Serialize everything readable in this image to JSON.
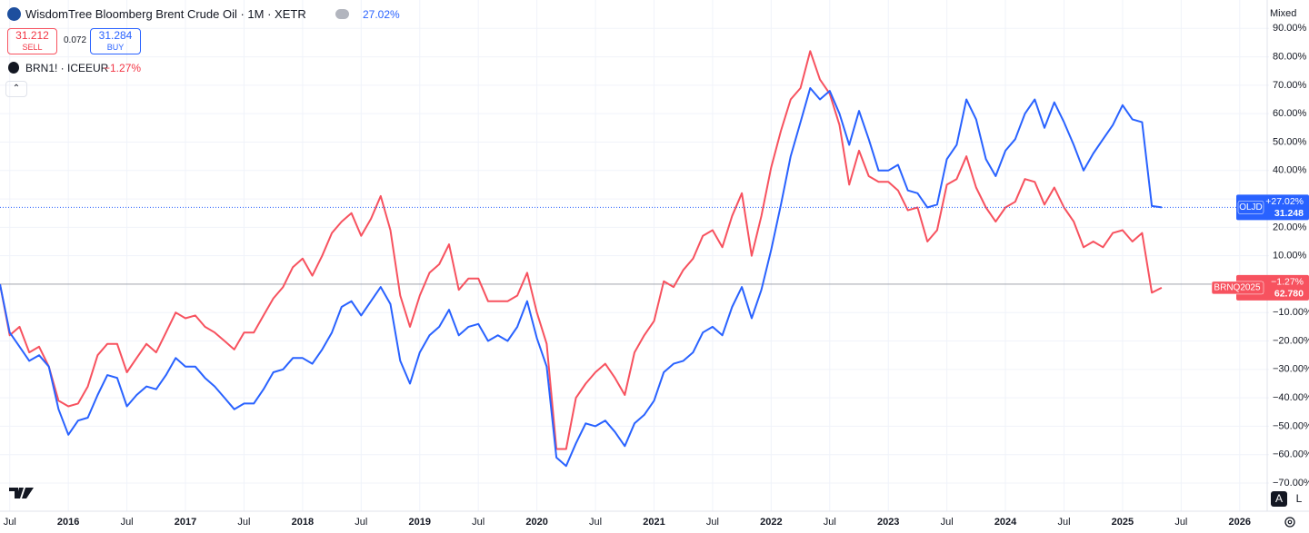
{
  "chart_data": {
    "type": "line",
    "title": "WisdomTree Bloomberg Brent Crude Oil · 1M · XETR",
    "sell": {
      "price": "31.212",
      "label": "SELL"
    },
    "spread": "0.072",
    "buy": {
      "price": "31.284",
      "label": "BUY"
    },
    "scale_mode": "Mixed",
    "scale_buttons": [
      "A",
      "L"
    ],
    "grid": true,
    "x": [
      "2015-06",
      "2015-07",
      "2015-08",
      "2015-09",
      "2015-10",
      "2015-11",
      "2015-12",
      "2016-01",
      "2016-02",
      "2016-03",
      "2016-04",
      "2016-05",
      "2016-06",
      "2016-07",
      "2016-08",
      "2016-09",
      "2016-10",
      "2016-11",
      "2016-12",
      "2017-01",
      "2017-02",
      "2017-03",
      "2017-04",
      "2017-05",
      "2017-06",
      "2017-07",
      "2017-08",
      "2017-09",
      "2017-10",
      "2017-11",
      "2017-12",
      "2018-01",
      "2018-02",
      "2018-03",
      "2018-04",
      "2018-05",
      "2018-06",
      "2018-07",
      "2018-08",
      "2018-09",
      "2018-10",
      "2018-11",
      "2018-12",
      "2019-01",
      "2019-02",
      "2019-03",
      "2019-04",
      "2019-05",
      "2019-06",
      "2019-07",
      "2019-08",
      "2019-09",
      "2019-10",
      "2019-11",
      "2019-12",
      "2020-01",
      "2020-02",
      "2020-03",
      "2020-04",
      "2020-05",
      "2020-06",
      "2020-07",
      "2020-08",
      "2020-09",
      "2020-10",
      "2020-11",
      "2020-12",
      "2021-01",
      "2021-02",
      "2021-03",
      "2021-04",
      "2021-05",
      "2021-06",
      "2021-07",
      "2021-08",
      "2021-09",
      "2021-10",
      "2021-11",
      "2021-12",
      "2022-01",
      "2022-02",
      "2022-03",
      "2022-04",
      "2022-05",
      "2022-06",
      "2022-07",
      "2022-08",
      "2022-09",
      "2022-10",
      "2022-11",
      "2022-12",
      "2023-01",
      "2023-02",
      "2023-03",
      "2023-04",
      "2023-05",
      "2023-06",
      "2023-07",
      "2023-08",
      "2023-09",
      "2023-10",
      "2023-11",
      "2023-12",
      "2024-01",
      "2024-02",
      "2024-03",
      "2024-04",
      "2024-05",
      "2024-06",
      "2024-07",
      "2024-08",
      "2024-09",
      "2024-10",
      "2024-11",
      "2024-12",
      "2025-01",
      "2025-02",
      "2025-03",
      "2025-04",
      "2025-05"
    ],
    "series": [
      {
        "name": "OLJD",
        "color": "#2962ff",
        "change_label": "27.02%",
        "tag_change": "+27.02%",
        "tag_price": "31.248",
        "values": [
          0,
          -17,
          -22,
          -27,
          -25,
          -29,
          -44,
          -53,
          -48,
          -47,
          -39,
          -32,
          -33,
          -43,
          -39,
          -36,
          -37,
          -32,
          -26,
          -29,
          -29,
          -33,
          -36,
          -40,
          -44,
          -42,
          -42,
          -37,
          -31,
          -30,
          -26,
          -26,
          -28,
          -23,
          -17,
          -8,
          -6,
          -11,
          -6,
          -1,
          -7,
          -27,
          -35,
          -24,
          -18,
          -15,
          -9,
          -18,
          -15,
          -14,
          -20,
          -18,
          -20,
          -15,
          -6,
          -19,
          -29,
          -61,
          -64,
          -56,
          -49,
          -50,
          -48,
          -52,
          -57,
          -49,
          -46,
          -41,
          -31,
          -28,
          -27,
          -24,
          -17,
          -15,
          -18,
          -8,
          -1,
          -12,
          -2,
          12,
          28,
          45,
          57,
          69,
          65,
          68,
          60,
          49,
          61,
          51,
          40,
          40,
          42,
          33,
          32,
          27,
          28,
          44,
          49,
          65,
          58,
          44,
          38,
          47,
          51,
          60,
          65,
          55,
          64,
          57,
          49,
          40,
          46,
          51,
          56,
          63,
          58,
          57,
          27.5,
          27.02
        ]
      },
      {
        "name": "BRNQ2025",
        "legend": "BRN1! · ICEEUR",
        "color": "#f7525f",
        "change_label": "−1.27%",
        "tag_change": "−1.27%",
        "tag_price": "62.780",
        "values": [
          0,
          -18,
          -15,
          -24,
          -22,
          -29,
          -41,
          -43,
          -42,
          -36,
          -25,
          -21,
          -21,
          -31,
          -26,
          -21,
          -24,
          -17,
          -10,
          -12,
          -11,
          -15,
          -17,
          -20,
          -23,
          -17,
          -17,
          -11,
          -5,
          -1,
          6,
          9,
          3,
          10,
          18,
          22,
          25,
          17,
          23,
          31,
          19,
          -4,
          -15,
          -4,
          4,
          7,
          14,
          -2,
          2,
          2,
          -6,
          -6,
          -6,
          -4,
          4,
          -10,
          -21,
          -58,
          -58,
          -40,
          -35,
          -31,
          -28,
          -33,
          -39,
          -24,
          -18,
          -13,
          1,
          -1,
          5,
          9,
          17,
          19,
          13,
          24,
          32,
          10,
          24,
          41,
          54,
          65,
          69,
          82,
          72,
          67,
          56,
          35,
          47,
          38,
          36,
          36,
          33,
          26,
          27,
          15,
          19,
          35,
          37,
          45,
          34,
          27,
          22,
          27,
          29,
          37,
          36,
          28,
          34,
          27,
          22,
          13,
          15,
          13,
          18,
          19,
          15,
          18,
          -3,
          -1.27
        ]
      }
    ],
    "xlim": [
      "2015-06",
      "2026-04"
    ],
    "xticks": [
      {
        "value": "2015-07",
        "label": "Jul"
      },
      {
        "value": "2016-01",
        "label": "2016"
      },
      {
        "value": "2016-07",
        "label": "Jul"
      },
      {
        "value": "2017-01",
        "label": "2017"
      },
      {
        "value": "2017-07",
        "label": "Jul"
      },
      {
        "value": "2018-01",
        "label": "2018"
      },
      {
        "value": "2018-07",
        "label": "Jul"
      },
      {
        "value": "2019-01",
        "label": "2019"
      },
      {
        "value": "2019-07",
        "label": "Jul"
      },
      {
        "value": "2020-01",
        "label": "2020"
      },
      {
        "value": "2020-07",
        "label": "Jul"
      },
      {
        "value": "2021-01",
        "label": "2021"
      },
      {
        "value": "2021-07",
        "label": "Jul"
      },
      {
        "value": "2022-01",
        "label": "2022"
      },
      {
        "value": "2022-07",
        "label": "Jul"
      },
      {
        "value": "2023-01",
        "label": "2023"
      },
      {
        "value": "2023-07",
        "label": "Jul"
      },
      {
        "value": "2024-01",
        "label": "2024"
      },
      {
        "value": "2024-07",
        "label": "Jul"
      },
      {
        "value": "2025-01",
        "label": "2025"
      },
      {
        "value": "2025-07",
        "label": "Jul"
      },
      {
        "value": "2026-01",
        "label": "2026"
      }
    ],
    "ylim": [
      -79.9,
      100
    ],
    "yticks": [
      {
        "value": 90,
        "label": "90.00%"
      },
      {
        "value": 80,
        "label": "80.00%"
      },
      {
        "value": 70,
        "label": "70.00%"
      },
      {
        "value": 60,
        "label": "60.00%"
      },
      {
        "value": 50,
        "label": "50.00%"
      },
      {
        "value": 40,
        "label": "40.00%"
      },
      {
        "value": 30,
        "label": "30.00%"
      },
      {
        "value": 20,
        "label": "20.00%"
      },
      {
        "value": 10,
        "label": "10.00%"
      },
      {
        "value": -10,
        "label": "−10.00%"
      },
      {
        "value": -20,
        "label": "−20.00%"
      },
      {
        "value": -30,
        "label": "−30.00%"
      },
      {
        "value": -40,
        "label": "−40.00%"
      },
      {
        "value": -50,
        "label": "−50.00%"
      },
      {
        "value": -60,
        "label": "−60.00%"
      },
      {
        "value": -70,
        "label": "−70.00%"
      }
    ]
  }
}
